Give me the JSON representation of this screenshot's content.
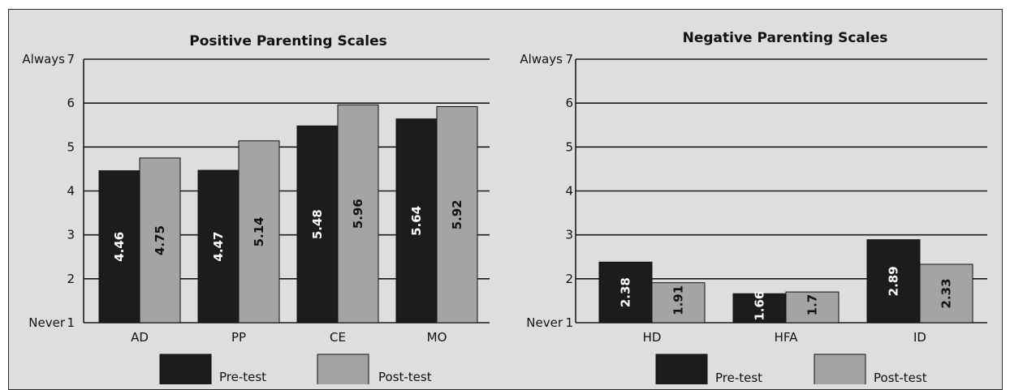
{
  "colors": {
    "pre": "#1c1c1c",
    "post": "#a4a4a4",
    "background": "#dedede",
    "grid": "#1a1a1a"
  },
  "legend": {
    "pre_label": "Pre-test",
    "post_label": "Post-test"
  },
  "chart_data": [
    {
      "type": "bar",
      "title": "Positive Parenting Scales",
      "categories": [
        "AD",
        "PP",
        "CE",
        "MO"
      ],
      "series": [
        {
          "name": "Pre-test",
          "values": [
            4.46,
            4.47,
            5.48,
            5.64
          ],
          "labels": [
            "4.46",
            "4.47",
            "5.48",
            "5.64"
          ]
        },
        {
          "name": "Post-test",
          "values": [
            4.75,
            5.14,
            5.96,
            5.92
          ],
          "labels": [
            "4.75",
            "5.14",
            "5.96",
            "5.92"
          ]
        }
      ],
      "ylim": [
        1,
        7
      ],
      "yticks": [
        "1",
        "2",
        "3",
        "4",
        "5",
        "6",
        "7"
      ],
      "y_top_label": "Always",
      "y_bottom_label": "Never",
      "grid": true,
      "legend_position": "bottom"
    },
    {
      "type": "bar",
      "title": "Negative Parenting Scales",
      "categories": [
        "HD",
        "HFA",
        "ID"
      ],
      "series": [
        {
          "name": "Pre-test",
          "values": [
            2.38,
            1.66,
            2.89
          ],
          "labels": [
            "2.38",
            "1.66",
            "2.89"
          ]
        },
        {
          "name": "Post-test",
          "values": [
            1.91,
            1.7,
            2.33
          ],
          "labels": [
            "1.91",
            "1.7",
            "2.33"
          ]
        }
      ],
      "ylim": [
        1,
        7
      ],
      "yticks": [
        "1",
        "2",
        "3",
        "4",
        "5",
        "6",
        "7"
      ],
      "y_top_label": "Always",
      "y_bottom_label": "Never",
      "grid": true,
      "legend_position": "bottom"
    }
  ]
}
